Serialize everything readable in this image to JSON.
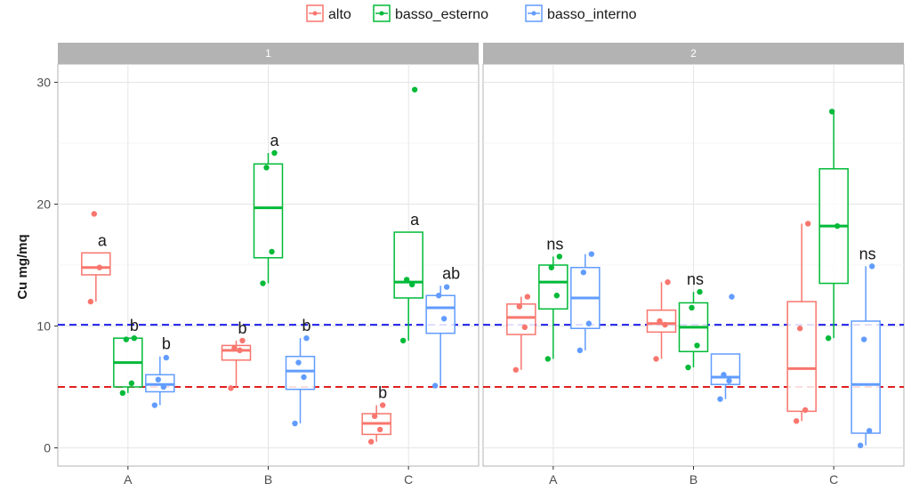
{
  "chart_data": {
    "type": "boxplot",
    "ylabel": "Cu mg/mq",
    "xlabel": "",
    "ylim": [
      -1.5,
      31.5
    ],
    "yticks": [
      0,
      10,
      20,
      30
    ],
    "categories": [
      "A",
      "B",
      "C"
    ],
    "legend": {
      "position": "top",
      "entries": [
        {
          "name": "alto",
          "color": "#F8766D"
        },
        {
          "name": "basso_esterno",
          "color": "#00BA38"
        },
        {
          "name": "basso_interno",
          "color": "#619CFF"
        }
      ]
    },
    "reference_lines": [
      {
        "value": 10.1,
        "color": "#2020EE",
        "style": "dashed"
      },
      {
        "value": 5,
        "color": "#E02020",
        "style": "dashed"
      }
    ],
    "panels": [
      {
        "label": "1",
        "boxes": [
          {
            "category": "A",
            "group": "alto",
            "whisker_low": 12,
            "q1": 14.2,
            "median": 14.8,
            "q3": 16,
            "whisker_high": 16,
            "points": [
              12,
              14.8,
              19.2
            ],
            "letter": "a"
          },
          {
            "category": "A",
            "group": "basso_esterno",
            "whisker_low": 4.5,
            "q1": 5,
            "median": 7,
            "q3": 9,
            "whisker_high": 9,
            "points": [
              4.5,
              5.3,
              8.9,
              9
            ],
            "letter": "b"
          },
          {
            "category": "A",
            "group": "basso_interno",
            "whisker_low": 3.5,
            "q1": 4.6,
            "median": 5.2,
            "q3": 6,
            "whisker_high": 7.5,
            "points": [
              3.5,
              5,
              5.6,
              7.4
            ],
            "letter": "b"
          },
          {
            "category": "B",
            "group": "alto",
            "whisker_low": 4.9,
            "q1": 7.2,
            "median": 8,
            "q3": 8.4,
            "whisker_high": 8.8,
            "points": [
              4.9,
              8,
              8.2,
              8.8
            ],
            "letter": "b"
          },
          {
            "category": "B",
            "group": "basso_esterno",
            "whisker_low": 13.5,
            "q1": 15.6,
            "median": 19.7,
            "q3": 23.3,
            "whisker_high": 24.2,
            "points": [
              13.5,
              16.1,
              23,
              24.2
            ],
            "letter": "a"
          },
          {
            "category": "B",
            "group": "basso_interno",
            "whisker_low": 2,
            "q1": 4.8,
            "median": 6.3,
            "q3": 7.5,
            "whisker_high": 9,
            "points": [
              2,
              5.8,
              7,
              9
            ],
            "letter": "b"
          },
          {
            "category": "C",
            "group": "alto",
            "whisker_low": 0.5,
            "q1": 1.1,
            "median": 2,
            "q3": 2.8,
            "whisker_high": 3.5,
            "points": [
              0.5,
              1.5,
              2.6,
              3.5
            ],
            "letter": "b"
          },
          {
            "category": "C",
            "group": "basso_esterno",
            "whisker_low": 8.8,
            "q1": 12.3,
            "median": 13.6,
            "q3": 17.7,
            "whisker_high": 17.7,
            "points": [
              8.8,
              13.4,
              13.8,
              29.4
            ],
            "letter": "a"
          },
          {
            "category": "C",
            "group": "basso_interno",
            "whisker_low": 5.1,
            "q1": 9.4,
            "median": 11.5,
            "q3": 12.5,
            "whisker_high": 13.3,
            "points": [
              5.1,
              10.6,
              12.5,
              13.2
            ],
            "letter": "ab"
          }
        ]
      },
      {
        "label": "2",
        "boxes": [
          {
            "category": "A",
            "group": "alto",
            "whisker_low": 6.4,
            "q1": 9.3,
            "median": 10.7,
            "q3": 11.8,
            "whisker_high": 12.4,
            "points": [
              6.4,
              9.9,
              11.6,
              12.4
            ],
            "letter": ""
          },
          {
            "category": "A",
            "group": "basso_esterno",
            "whisker_low": 7.3,
            "q1": 11.4,
            "median": 13.6,
            "q3": 15,
            "whisker_high": 15.7,
            "points": [
              7.3,
              12.5,
              14.8,
              15.7
            ],
            "letter": "ns"
          },
          {
            "category": "A",
            "group": "basso_interno",
            "whisker_low": 8,
            "q1": 9.8,
            "median": 12.3,
            "q3": 14.8,
            "whisker_high": 15.9,
            "points": [
              8,
              10.2,
              14.4,
              15.9
            ],
            "letter": ""
          },
          {
            "category": "B",
            "group": "alto",
            "whisker_low": 7.3,
            "q1": 9.5,
            "median": 10.2,
            "q3": 11.3,
            "whisker_high": 13.6,
            "points": [
              7.3,
              10.1,
              10.4,
              13.6
            ],
            "letter": ""
          },
          {
            "category": "B",
            "group": "basso_esterno",
            "whisker_low": 6.6,
            "q1": 7.9,
            "median": 9.9,
            "q3": 11.9,
            "whisker_high": 12.8,
            "points": [
              6.6,
              8.4,
              11.5,
              12.8
            ],
            "letter": "ns"
          },
          {
            "category": "B",
            "group": "basso_interno",
            "whisker_low": 4,
            "q1": 5.2,
            "median": 5.8,
            "q3": 7.7,
            "whisker_high": 7.7,
            "points": [
              4,
              5.5,
              6,
              12.4
            ],
            "letter": ""
          },
          {
            "category": "C",
            "group": "alto",
            "whisker_low": 2.2,
            "q1": 3,
            "median": 6.5,
            "q3": 12,
            "whisker_high": 18.4,
            "points": [
              2.2,
              3.1,
              9.8,
              18.4
            ],
            "letter": ""
          },
          {
            "category": "C",
            "group": "basso_esterno",
            "whisker_low": 9,
            "q1": 13.5,
            "median": 18.2,
            "q3": 22.9,
            "whisker_high": 27.6,
            "points": [
              9,
              18.2,
              27.6
            ],
            "letter": ""
          },
          {
            "category": "C",
            "group": "basso_interno",
            "whisker_low": 0.2,
            "q1": 1.2,
            "median": 5.2,
            "q3": 10.4,
            "whisker_high": 14.9,
            "points": [
              0.2,
              1.4,
              8.9,
              14.9
            ],
            "letter": "ns"
          }
        ]
      }
    ]
  }
}
